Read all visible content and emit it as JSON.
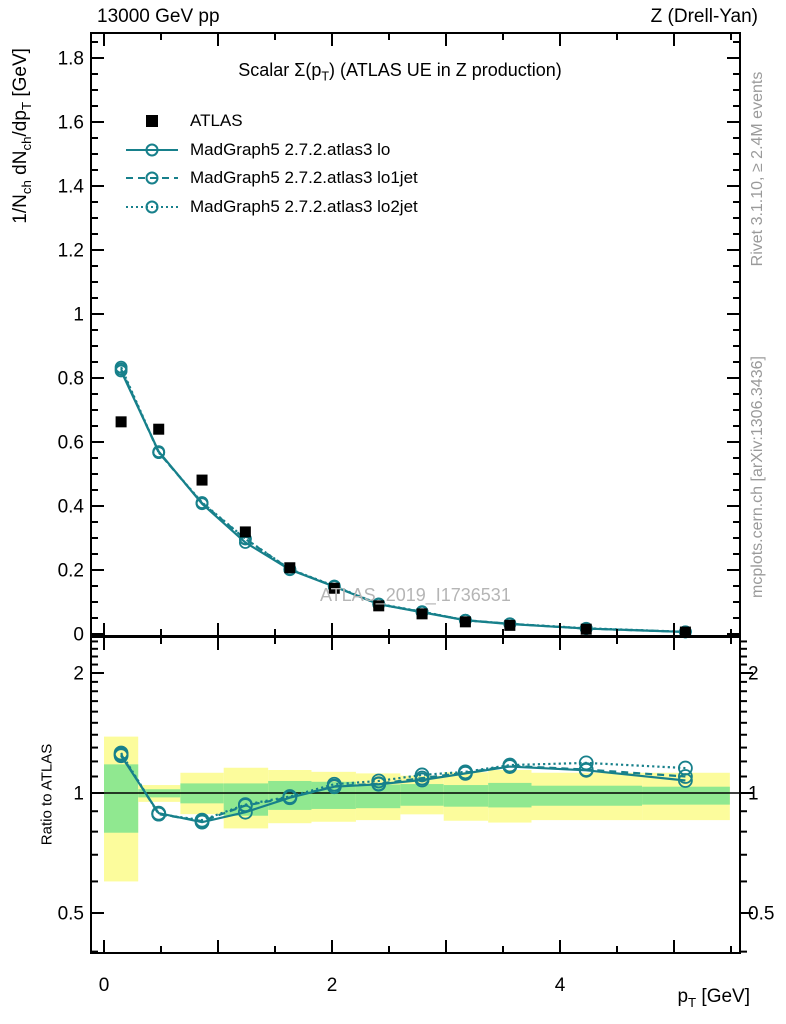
{
  "header": {
    "left": "13000 GeV pp",
    "right": "Z (Drell-Yan)"
  },
  "title": {
    "a": "Scalar Σ(p",
    "sub": "T",
    "b": ") (ATLAS UE in Z production)"
  },
  "legend": {
    "items": [
      {
        "label": "ATLAS",
        "style": "square"
      },
      {
        "label": "MadGraph5 2.7.2.atlas3 lo",
        "style": "solid"
      },
      {
        "label": "MadGraph5 2.7.2.atlas3 lo1jet",
        "style": "dashed"
      },
      {
        "label": "MadGraph5 2.7.2.atlas3 lo2jet",
        "style": "dotted"
      }
    ]
  },
  "ylabel": {
    "a": "1/N",
    "s1": "ch",
    "b": " dN",
    "s2": "ch",
    "c": "/dp",
    "s3": "T",
    "d": " [GeV]"
  },
  "xlabel": {
    "a": "p",
    "s1": "T",
    "b": " [GeV]"
  },
  "ratio_label": "Ratio to ATLAS",
  "watermark": "ATLAS_2019_I1736531",
  "side_notes": {
    "top": "Rivet 3.1.10, ≥ 2.4M events",
    "bottom": "mcplots.cern.ch [arXiv:1306.3436]"
  },
  "colors": {
    "mc": "#17808b",
    "atlas": "#000000",
    "band_yellow": "#fcfc9c",
    "band_green": "#90e890",
    "gray_text": "#9a9a9a",
    "watermark": "#b5b5b5"
  },
  "chart_data": {
    "type": "line",
    "title": "Scalar Σ(p_T) (ATLAS UE in Z production)",
    "xlabel": "p_T [GeV]",
    "ylabel": "1/N_ch dN_ch/dp_T [GeV]",
    "ratio_ylabel": "Ratio to ATLAS",
    "xlim": [
      -0.11,
      5.58
    ],
    "main_ylim": [
      0,
      1.88
    ],
    "ratio_ylim": [
      0.397,
      2.46
    ],
    "ratio_yscale": "log",
    "grid": false,
    "legend_position": "top-left",
    "x_points": [
      0.15,
      0.48,
      0.86,
      1.24,
      1.63,
      2.02,
      2.41,
      2.79,
      3.17,
      3.56,
      4.23,
      5.1
    ],
    "atlas_values": [
      0.663,
      0.64,
      0.481,
      0.319,
      0.207,
      0.143,
      0.088,
      0.063,
      0.038,
      0.027,
      0.015,
      0.006
    ],
    "series": [
      {
        "name": "MadGraph5 2.7.2.atlas3 lo",
        "style": "solid",
        "main": [
          0.822,
          0.57,
          0.407,
          0.286,
          0.201,
          0.148,
          0.093,
          0.068,
          0.043,
          0.031,
          0.017,
          0.0065
        ],
        "ratio": [
          1.24,
          0.89,
          0.845,
          0.895,
          0.973,
          1.037,
          1.052,
          1.078,
          1.12,
          1.165,
          1.14,
          1.075
        ]
      },
      {
        "name": "MadGraph5 2.7.2.atlas3 lo1jet",
        "style": "dashed",
        "main": [
          0.828,
          0.567,
          0.409,
          0.297,
          0.202,
          0.149,
          0.093,
          0.069,
          0.043,
          0.032,
          0.017,
          0.0066
        ],
        "ratio": [
          1.25,
          0.885,
          0.85,
          0.93,
          0.975,
          1.04,
          1.055,
          1.09,
          1.125,
          1.17,
          1.145,
          1.1
        ]
      },
      {
        "name": "MadGraph5 2.7.2.atlas3 lo2jet",
        "style": "dotted",
        "main": [
          0.834,
          0.567,
          0.411,
          0.298,
          0.203,
          0.15,
          0.094,
          0.07,
          0.043,
          0.032,
          0.018,
          0.0069
        ],
        "ratio": [
          1.26,
          0.885,
          0.855,
          0.935,
          0.98,
          1.052,
          1.072,
          1.11,
          1.13,
          1.175,
          1.19,
          1.155
        ]
      }
    ],
    "bands": {
      "edges": [
        0.0,
        0.3,
        0.67,
        1.05,
        1.44,
        1.82,
        2.21,
        2.6,
        2.98,
        3.37,
        3.75,
        4.72,
        5.49
      ],
      "yellow": [
        [
          0.6,
          1.385
        ],
        [
          0.95,
          1.047
        ],
        [
          0.885,
          1.124
        ],
        [
          0.815,
          1.157
        ],
        [
          0.84,
          1.142
        ],
        [
          0.847,
          1.13
        ],
        [
          0.855,
          1.12
        ],
        [
          0.884,
          1.105
        ],
        [
          0.852,
          1.127
        ],
        [
          0.843,
          1.142
        ],
        [
          0.855,
          1.124
        ],
        [
          0.855,
          1.124
        ]
      ],
      "green": [
        [
          0.795,
          1.18
        ],
        [
          0.975,
          1.022
        ],
        [
          0.942,
          1.057
        ],
        [
          0.877,
          1.057
        ],
        [
          0.907,
          1.072
        ],
        [
          0.912,
          1.067
        ],
        [
          0.916,
          1.05
        ],
        [
          0.929,
          1.053
        ],
        [
          0.924,
          1.047
        ],
        [
          0.92,
          1.06
        ],
        [
          0.929,
          1.043
        ],
        [
          0.935,
          1.037
        ]
      ]
    },
    "ticks": {
      "x_labels": [
        "0",
        "2",
        "4"
      ],
      "x_label_values": [
        0,
        2,
        4
      ],
      "y_labels": [
        "0",
        "0.2",
        "0.4",
        "0.6",
        "0.8",
        "1",
        "1.2",
        "1.4",
        "1.6",
        "1.8"
      ],
      "y_label_values": [
        0,
        0.2,
        0.4,
        0.6,
        0.8,
        1,
        1.2,
        1.4,
        1.6,
        1.8
      ],
      "ratio_labels": [
        "0.5",
        "1",
        "2"
      ],
      "ratio_label_values": [
        0.5,
        1,
        2
      ]
    }
  }
}
